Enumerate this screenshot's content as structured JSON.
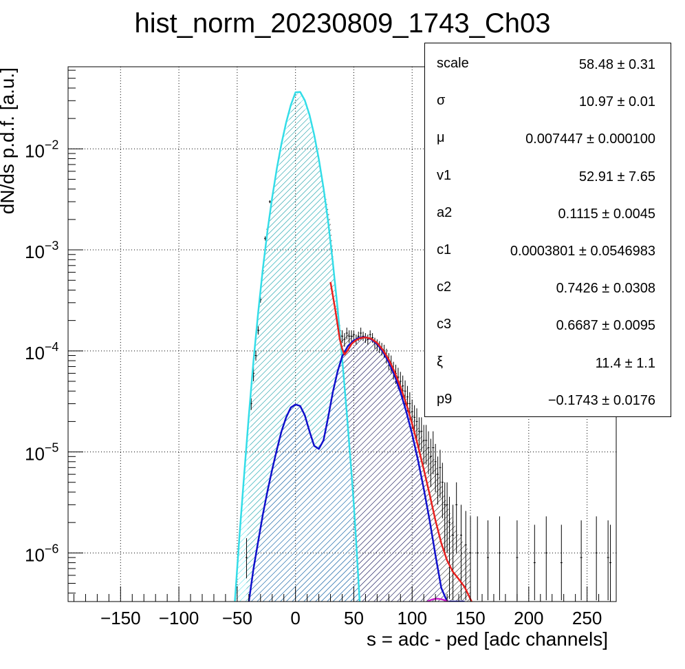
{
  "chart_data": {
    "type": "line",
    "title": "hist_norm_20230809_1743_Ch03",
    "xlabel": "s = adc - ped [adc channels]",
    "ylabel": "dN/ds p.d.f. [a.u.]",
    "xlim": [
      -195,
      275
    ],
    "ylim": [
      3.3e-07,
      0.065
    ],
    "yscale": "log",
    "grid": true,
    "x_ticks": [
      {
        "value": -150,
        "label": "−150"
      },
      {
        "value": -100,
        "label": "−100"
      },
      {
        "value": -50,
        "label": "−50"
      },
      {
        "value": 0,
        "label": "0"
      },
      {
        "value": 50,
        "label": "50"
      },
      {
        "value": 100,
        "label": "100"
      },
      {
        "value": 150,
        "label": "150"
      },
      {
        "value": 200,
        "label": "200"
      },
      {
        "value": 250,
        "label": "250"
      }
    ],
    "y_ticks": [
      {
        "value": 1e-06,
        "mantissa": "10",
        "exponent": "−6"
      },
      {
        "value": 1e-05,
        "mantissa": "10",
        "exponent": "−5"
      },
      {
        "value": 0.0001,
        "mantissa": "10",
        "exponent": "−4"
      },
      {
        "value": 0.001,
        "mantissa": "10",
        "exponent": "−3"
      },
      {
        "value": 0.01,
        "mantissa": "10",
        "exponent": "−2"
      }
    ],
    "series": [
      {
        "role": "pedestal-component",
        "color": "#33dde8",
        "hatch": true,
        "x": [
          -52,
          -48,
          -44,
          -40,
          -36,
          -32,
          -28,
          -24,
          -20,
          -16,
          -12,
          -8,
          -4,
          0,
          4,
          8,
          12,
          16,
          20,
          24,
          28,
          32,
          36,
          40,
          44,
          48,
          50,
          52,
          55
        ],
        "y": [
          3.3e-07,
          1.5e-06,
          6e-06,
          2.3e-05,
          8e-05,
          0.00024,
          0.00065,
          0.00155,
          0.0033,
          0.0064,
          0.0113,
          0.0183,
          0.0272,
          0.0363,
          0.0366,
          0.0302,
          0.0217,
          0.0138,
          0.0079,
          0.0041,
          0.0019,
          0.00075,
          0.00027,
          8.4e-05,
          2.4e-05,
          6.2e-06,
          3e-06,
          1.3e-06,
          3.3e-07
        ]
      },
      {
        "role": "signal-component",
        "color": "#1010cc",
        "hatch": true,
        "x": [
          -40,
          -36,
          -32,
          -28,
          -24,
          -20,
          -16,
          -12,
          -8,
          -4,
          0,
          4,
          8,
          12,
          16,
          20,
          24,
          28,
          32,
          36,
          40,
          45,
          50,
          55,
          60,
          65,
          70,
          75,
          80,
          85,
          90,
          95,
          100,
          105,
          110,
          115,
          120,
          125,
          130,
          135,
          140,
          145
        ],
        "y": [
          3.3e-07,
          7e-07,
          1.3e-06,
          2.4e-06,
          4.1e-06,
          6.7e-06,
          1.05e-05,
          1.6e-05,
          2.2e-05,
          2.75e-05,
          2.95e-05,
          2.85e-05,
          2.3e-05,
          1.6e-05,
          1.15e-05,
          1.07e-05,
          1.3e-05,
          2.2e-05,
          3.9e-05,
          6.2e-05,
          8.8e-05,
          0.000112,
          0.000127,
          0.000135,
          0.000137,
          0.00013,
          0.000117,
          9.8e-05,
          7.7e-05,
          5.7e-05,
          3.9e-05,
          2.5e-05,
          1.5e-05,
          8.3e-06,
          4.3e-06,
          2.1e-06,
          9.5e-07,
          4.5e-07,
          3.3e-07,
          3.3e-07,
          3.3e-07,
          3.3e-07
        ]
      },
      {
        "role": "total-fit",
        "color": "#e8201e",
        "hatch": false,
        "x": [
          30,
          34,
          38,
          40,
          42,
          45,
          48,
          52,
          56,
          60,
          65,
          70,
          75,
          80,
          85,
          90,
          95,
          100,
          105,
          110,
          115,
          120,
          125,
          130,
          135,
          140,
          145,
          148,
          151
        ],
        "y": [
          0.00048,
          0.00026,
          0.00013,
          0.000105,
          9.2e-05,
          0.000102,
          0.000117,
          0.000128,
          0.000134,
          0.000136,
          0.000132,
          0.00012,
          0.000102,
          8.2e-05,
          6.2e-05,
          4.4e-05,
          3e-05,
          1.9e-05,
          1.15e-05,
          6.7e-06,
          3.8e-06,
          2.1e-06,
          1.25e-06,
          8.4e-07,
          6.5e-07,
          5.5e-07,
          4.6e-07,
          3.9e-07,
          3.3e-07
        ]
      },
      {
        "role": "minor-component",
        "color": "#cc22cc",
        "hatch": false,
        "x": [
          113,
          116,
          119,
          122,
          125,
          128,
          131
        ],
        "y": [
          3.3e-07,
          3.42e-07,
          3.5e-07,
          3.52e-07,
          3.48e-07,
          3.4e-07,
          3.3e-07
        ]
      }
    ],
    "data_histogram": {
      "role": "data-points-with-error-bars",
      "color": "#000000",
      "x": [
        -42,
        -38,
        -36,
        -34,
        -32,
        -30,
        -28,
        -26,
        -24,
        -22,
        36,
        40,
        42,
        44,
        46,
        48,
        50,
        52,
        54,
        56,
        58,
        60,
        62,
        64,
        66,
        68,
        70,
        72,
        74,
        76,
        78,
        80,
        82,
        84,
        86,
        88,
        90,
        92,
        94,
        96,
        98,
        100,
        102,
        104,
        106,
        108,
        110,
        112,
        114,
        116,
        118,
        120,
        122,
        124,
        126,
        128,
        130,
        132,
        135,
        138,
        142,
        146,
        150,
        156,
        165,
        175,
        190,
        205,
        215,
        228,
        245,
        258,
        268,
        270
      ],
      "y": [
        9e-07,
        3e-05,
        6e-05,
        9e-05,
        0.00016,
        0.00032,
        0.00062,
        0.0013,
        0.0016,
        0.003,
        0.00026,
        0.00014,
        0.00013,
        0.00015,
        0.00014,
        0.00014,
        0.000145,
        0.00013,
        0.00014,
        0.00015,
        0.00014,
        0.000135,
        0.00013,
        0.000145,
        0.000135,
        0.00012,
        0.000115,
        0.00011,
        0.000105,
        0.0001,
        9e-05,
        8e-05,
        7.5e-05,
        6.5e-05,
        6e-05,
        5.5e-05,
        5e-05,
        4.5e-05,
        4e-05,
        3.5e-05,
        3e-05,
        2.5e-05,
        2.2e-05,
        2e-05,
        1.6e-05,
        1.6e-05,
        1.3e-05,
        1.3e-05,
        1.1e-05,
        9e-06,
        1.1e-05,
        8e-06,
        6e-06,
        7e-06,
        5e-06,
        3e-06,
        3e-06,
        2e-06,
        1.5e-06,
        3e-06,
        1.5e-06,
        1.2e-06,
        1e-06,
        1e-06,
        9e-07,
        1e-06,
        9e-07,
        8e-07,
        1e-06,
        8e-07,
        9e-07,
        1e-06,
        9e-07,
        8e-07
      ],
      "err_lo": [
        5.6e-07,
        2.6e-05,
        5e-05,
        8e-05,
        0.000145,
        0.0003,
        0.00058,
        0.00124,
        0.00153,
        0.0029,
        0.00023,
        0.00012,
        0.00011,
        0.00013,
        0.00012,
        0.00012,
        0.00013,
        0.000115,
        0.000125,
        0.00013,
        0.000125,
        0.00012,
        0.000115,
        0.00013,
        0.00012,
        0.000105,
        0.0001,
        9.5e-05,
        9e-05,
        8.5e-05,
        7.5e-05,
        6.5e-05,
        6e-05,
        5.2e-05,
        4.7e-05,
        4.2e-05,
        3.8e-05,
        3.3e-05,
        2.9e-05,
        2.5e-05,
        2.1e-05,
        1.7e-05,
        1.5e-05,
        1.3e-05,
        1e-05,
        1e-05,
        7.5e-06,
        7.5e-06,
        6e-06,
        4.5e-06,
        6e-06,
        4e-06,
        3e-06,
        3.5e-06,
        2.2e-06,
        1e-06,
        1e-06,
        3.5e-07,
        3.4e-07,
        1e-06,
        3.4e-07,
        3.4e-07,
        3.4e-07,
        3.4e-07,
        3.4e-07,
        3.4e-07,
        3.4e-07,
        3.4e-07,
        3.4e-07,
        3.4e-07,
        3.4e-07,
        3.4e-07,
        3.4e-07,
        3.4e-07
      ],
      "err_hi": [
        1.4e-06,
        3.4e-05,
        7e-05,
        0.0001,
        0.000175,
        0.00034,
        0.00066,
        0.00136,
        0.00167,
        0.0031,
        0.00029,
        0.00016,
        0.00015,
        0.00017,
        0.00016,
        0.00016,
        0.00016,
        0.000145,
        0.000155,
        0.00017,
        0.000155,
        0.00015,
        0.000145,
        0.00016,
        0.00015,
        0.000135,
        0.00013,
        0.000125,
        0.00012,
        0.000115,
        0.000105,
        9.5e-05,
        9e-05,
        7.8e-05,
        7.3e-05,
        6.8e-05,
        6.2e-05,
        5.7e-05,
        5.1e-05,
        4.5e-05,
        3.9e-05,
        3.3e-05,
        2.9e-05,
        2.7e-05,
        2.2e-05,
        2.2e-05,
        1.85e-05,
        1.85e-05,
        1.6e-05,
        1.35e-05,
        1.6e-05,
        1.2e-05,
        9e-06,
        1.05e-05,
        7.8e-06,
        5e-06,
        5e-06,
        3.6e-06,
        3e-06,
        5e-06,
        3e-06,
        2.6e-06,
        2.3e-06,
        2.3e-06,
        2.1e-06,
        2.3e-06,
        2.1e-06,
        1.9e-06,
        2.3e-06,
        1.9e-06,
        2.1e-06,
        2.3e-06,
        2.1e-06,
        1.9e-06
      ]
    },
    "legend_position": "top-right"
  },
  "stats": [
    {
      "name": "scale",
      "value": "58.48 ± 0.31"
    },
    {
      "name": "σ",
      "value": "10.97 ± 0.01"
    },
    {
      "name": "μ",
      "value": "0.007447 ± 0.000100"
    },
    {
      "name": "v1",
      "value": "52.91 ± 7.65"
    },
    {
      "name": "a2",
      "value": "0.1115 ± 0.0045"
    },
    {
      "name": "c1",
      "value": "0.0003801 ± 0.0546983"
    },
    {
      "name": "c2",
      "value": "0.7426 ± 0.0308"
    },
    {
      "name": "c3",
      "value": "0.6687 ± 0.0095"
    },
    {
      "name": "ξ",
      "value": "11.4 ± 1.1"
    },
    {
      "name": "p9",
      "value": "−0.1743 ± 0.0176"
    }
  ]
}
